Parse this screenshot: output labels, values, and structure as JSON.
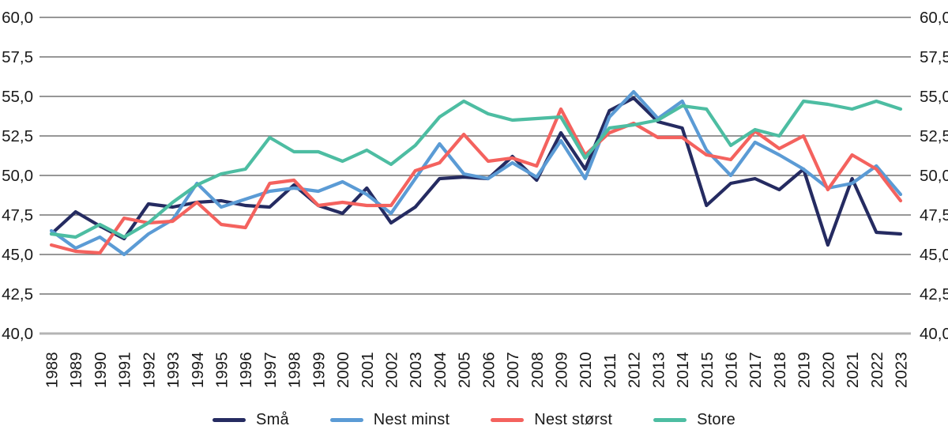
{
  "chart_data": {
    "type": "line",
    "title": "",
    "xlabel": "",
    "ylabel": "",
    "grid": true,
    "legend_position": "bottom",
    "decimal_separator": ",",
    "y_axis": {
      "min": 40.0,
      "max": 60.0,
      "step": 2.5,
      "tick_labels": [
        "40,0",
        "42,5",
        "45,0",
        "47,5",
        "50,0",
        "52,5",
        "55,0",
        "57,5",
        "60,0"
      ],
      "label_sides": "both"
    },
    "categories": [
      "1988",
      "1989",
      "1990",
      "1991",
      "1992",
      "1993",
      "1994",
      "1995",
      "1996",
      "1997",
      "1998",
      "1999",
      "2000",
      "2001",
      "2002",
      "2003",
      "2004",
      "2005",
      "2006",
      "2007",
      "2008",
      "2009",
      "2010",
      "2011",
      "2012",
      "2013",
      "2014",
      "2015",
      "2016",
      "2017",
      "2018",
      "2019",
      "2020",
      "2021",
      "2022",
      "2023"
    ],
    "series": [
      {
        "name": "Små",
        "color": "#252b61",
        "values": [
          46.3,
          47.7,
          46.8,
          46.0,
          48.2,
          48.0,
          48.3,
          48.4,
          48.1,
          48.0,
          49.4,
          48.1,
          47.6,
          49.2,
          47.0,
          48.0,
          49.8,
          49.9,
          49.8,
          51.2,
          49.7,
          52.7,
          50.4,
          54.1,
          54.9,
          53.4,
          53.0,
          48.1,
          49.5,
          49.8,
          49.1,
          50.4,
          45.6,
          49.8,
          46.4,
          46.3
        ]
      },
      {
        "name": "Nest minst",
        "color": "#5b9bd5",
        "values": [
          46.5,
          45.4,
          46.1,
          45.0,
          46.3,
          47.2,
          49.5,
          48.0,
          48.5,
          49.0,
          49.2,
          49.0,
          49.6,
          48.8,
          47.6,
          49.8,
          52.0,
          50.1,
          49.8,
          50.8,
          49.9,
          52.2,
          49.8,
          53.7,
          55.3,
          53.6,
          54.7,
          51.6,
          50.0,
          52.1,
          51.3,
          50.4,
          49.2,
          49.5,
          50.6,
          48.8
        ]
      },
      {
        "name": "Nest størst",
        "color": "#f4625e",
        "values": [
          45.6,
          45.2,
          45.1,
          47.3,
          47.0,
          47.1,
          48.3,
          46.9,
          46.7,
          49.5,
          49.7,
          48.1,
          48.3,
          48.1,
          48.1,
          50.3,
          50.8,
          52.6,
          50.9,
          51.1,
          50.6,
          54.2,
          51.3,
          52.7,
          53.3,
          52.4,
          52.4,
          51.3,
          51.0,
          52.8,
          51.7,
          52.5,
          49.1,
          51.3,
          50.4,
          48.4
        ]
      },
      {
        "name": "Store",
        "color": "#4dbda2",
        "values": [
          46.3,
          46.1,
          46.9,
          46.1,
          47.0,
          48.3,
          49.4,
          50.1,
          50.4,
          52.4,
          51.5,
          51.5,
          50.9,
          51.6,
          50.7,
          51.9,
          53.7,
          54.7,
          53.9,
          53.5,
          53.6,
          53.7,
          51.1,
          53.0,
          53.2,
          53.5,
          54.4,
          54.2,
          51.9,
          52.9,
          52.5,
          54.7,
          54.5,
          54.2,
          54.7,
          54.2
        ]
      }
    ],
    "style": {
      "gridline_color": "#757575",
      "baseline_color": "#b4b4b4",
      "text_color": "#1a1a1a"
    }
  }
}
